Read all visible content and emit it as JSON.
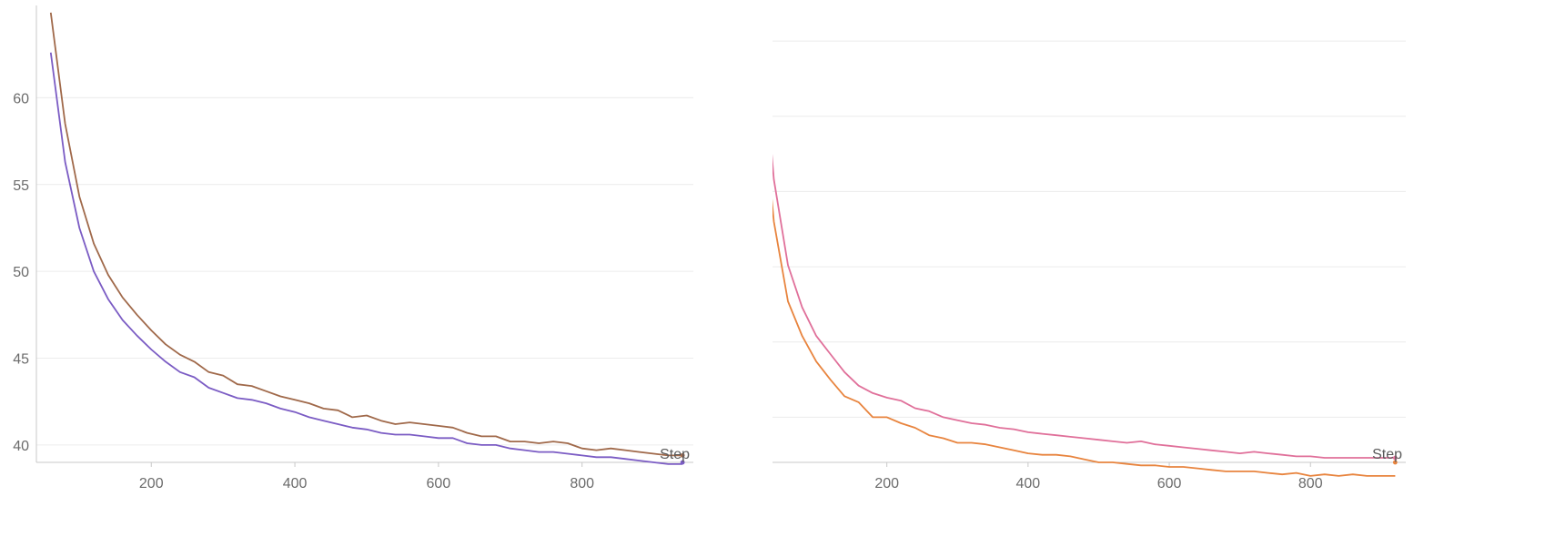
{
  "chart_data": [
    {
      "type": "line",
      "xlabel": "Step",
      "xlim": [
        40,
        955
      ],
      "ylim": [
        39,
        65
      ],
      "xticks": [
        200,
        400,
        600,
        800
      ],
      "yticks": [
        40,
        45,
        50,
        55,
        60
      ],
      "grid": true,
      "series": [
        {
          "color": "#a0694a",
          "x": [
            60,
            80,
            100,
            120,
            140,
            160,
            180,
            200,
            220,
            240,
            260,
            280,
            300,
            320,
            340,
            360,
            380,
            400,
            420,
            440,
            460,
            480,
            500,
            520,
            540,
            560,
            580,
            600,
            620,
            640,
            660,
            680,
            700,
            720,
            740,
            760,
            780,
            800,
            820,
            840,
            860,
            880,
            900,
            920,
            940
          ],
          "y": [
            64.9,
            58.5,
            54.3,
            51.6,
            49.8,
            48.5,
            47.5,
            46.6,
            45.8,
            45.2,
            44.8,
            44.2,
            44.0,
            43.5,
            43.4,
            43.1,
            42.8,
            42.6,
            42.4,
            42.1,
            42.0,
            41.6,
            41.7,
            41.4,
            41.2,
            41.3,
            41.2,
            41.1,
            41.0,
            40.7,
            40.5,
            40.5,
            40.2,
            40.2,
            40.1,
            40.2,
            40.1,
            39.8,
            39.7,
            39.8,
            39.7,
            39.6,
            39.5,
            39.4,
            39.4
          ]
        },
        {
          "color": "#7b5cc4",
          "x": [
            60,
            80,
            100,
            120,
            140,
            160,
            180,
            200,
            220,
            240,
            260,
            280,
            300,
            320,
            340,
            360,
            380,
            400,
            420,
            440,
            460,
            480,
            500,
            520,
            540,
            560,
            580,
            600,
            620,
            640,
            660,
            680,
            700,
            720,
            740,
            760,
            780,
            800,
            820,
            840,
            860,
            880,
            900,
            920,
            940
          ],
          "y": [
            62.6,
            56.3,
            52.5,
            50.0,
            48.4,
            47.2,
            46.3,
            45.5,
            44.8,
            44.2,
            43.9,
            43.3,
            43.0,
            42.7,
            42.6,
            42.4,
            42.1,
            41.9,
            41.6,
            41.4,
            41.2,
            41.0,
            40.9,
            40.7,
            40.6,
            40.6,
            40.5,
            40.4,
            40.4,
            40.1,
            40.0,
            40.0,
            39.8,
            39.7,
            39.6,
            39.6,
            39.5,
            39.4,
            39.3,
            39.3,
            39.2,
            39.1,
            39.0,
            38.9,
            38.9
          ]
        }
      ]
    },
    {
      "type": "line",
      "xlabel": "Step",
      "xlim": [
        20,
        935
      ],
      "ylim": [
        32,
        62
      ],
      "xticks": [
        200,
        400,
        600,
        800
      ],
      "yticks": [
        35,
        40,
        45,
        50,
        55,
        60
      ],
      "grid": true,
      "series": [
        {
          "color": "#e0709a",
          "x": [
            20,
            40,
            60,
            80,
            100,
            120,
            140,
            160,
            180,
            200,
            220,
            240,
            260,
            280,
            300,
            320,
            340,
            360,
            380,
            400,
            420,
            440,
            460,
            480,
            500,
            520,
            540,
            560,
            580,
            600,
            620,
            640,
            660,
            680,
            700,
            720,
            740,
            760,
            780,
            800,
            820,
            840,
            860,
            880,
            900,
            920
          ],
          "y": [
            61.8,
            50.8,
            45.1,
            42.3,
            40.4,
            39.2,
            38.0,
            37.1,
            36.6,
            36.3,
            36.1,
            35.6,
            35.4,
            35.0,
            34.8,
            34.6,
            34.5,
            34.3,
            34.2,
            34.0,
            33.9,
            33.8,
            33.7,
            33.6,
            33.5,
            33.4,
            33.3,
            33.4,
            33.2,
            33.1,
            33.0,
            32.9,
            32.8,
            32.7,
            32.6,
            32.7,
            32.6,
            32.5,
            32.4,
            32.4,
            32.3,
            32.3,
            32.3,
            32.3,
            32.3,
            32.3
          ]
        },
        {
          "color": "#e8843e",
          "x": [
            20,
            40,
            60,
            80,
            100,
            120,
            140,
            160,
            180,
            200,
            220,
            240,
            260,
            280,
            300,
            320,
            340,
            360,
            380,
            400,
            420,
            440,
            460,
            480,
            500,
            520,
            540,
            560,
            580,
            600,
            620,
            640,
            660,
            680,
            700,
            720,
            740,
            760,
            780,
            800,
            820,
            840,
            860,
            880,
            900,
            920
          ],
          "y": [
            57.9,
            48.0,
            42.7,
            40.4,
            38.7,
            37.5,
            36.4,
            36.0,
            35.0,
            35.0,
            34.6,
            34.3,
            33.8,
            33.6,
            33.3,
            33.3,
            33.2,
            33.0,
            32.8,
            32.6,
            32.5,
            32.5,
            32.4,
            32.2,
            32.0,
            32.0,
            31.9,
            31.8,
            31.8,
            31.7,
            31.7,
            31.6,
            31.5,
            31.4,
            31.4,
            31.4,
            31.3,
            31.2,
            31.3,
            31.1,
            31.2,
            31.1,
            31.2,
            31.1,
            31.1,
            31.1
          ]
        }
      ]
    }
  ]
}
